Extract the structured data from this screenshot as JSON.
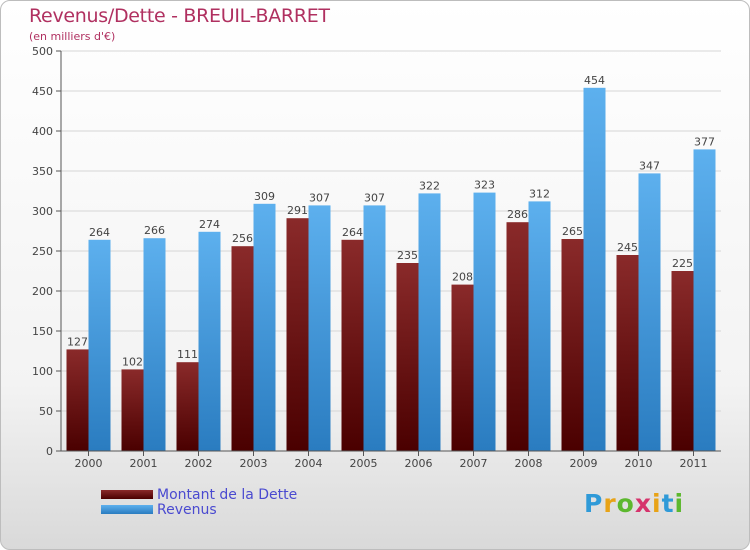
{
  "title": "Revenus/Dette - BREUIL-BARRET",
  "subtitle": "(en milliers d'€)",
  "colors": {
    "dette": "#7a1515",
    "revenus": "#4aa3e8",
    "title": "#b03060",
    "legend_text": "#4a4ad0"
  },
  "chart_data": {
    "type": "bar",
    "title": "Revenus/Dette - BREUIL-BARRET",
    "subtitle": "(en milliers d'€)",
    "categories": [
      "2000",
      "2001",
      "2002",
      "2003",
      "2004",
      "2005",
      "2006",
      "2007",
      "2008",
      "2009",
      "2010",
      "2011"
    ],
    "series": [
      {
        "name": "Montant de la Dette",
        "values": [
          127,
          102,
          111,
          256,
          291,
          264,
          235,
          208,
          286,
          265,
          245,
          225
        ]
      },
      {
        "name": "Revenus",
        "values": [
          264,
          266,
          274,
          309,
          307,
          307,
          322,
          323,
          312,
          454,
          347,
          377
        ]
      }
    ],
    "ylim": [
      0,
      500
    ],
    "yticks": [
      0,
      50,
      100,
      150,
      200,
      250,
      300,
      350,
      400,
      450,
      500
    ],
    "grid": true,
    "legend_position": "bottom-left"
  },
  "legend": [
    {
      "label": "Montant de la Dette",
      "icon": "dark-red-swatch"
    },
    {
      "label": "Revenus",
      "icon": "blue-swatch"
    }
  ],
  "logo": {
    "letters": [
      "P",
      "r",
      "o",
      "x",
      "i",
      "t",
      "i"
    ],
    "colors": [
      "#2f9ad8",
      "#e8a317",
      "#5cb82e",
      "#d6336c",
      "#e8a317",
      "#2f9ad8",
      "#5cb82e"
    ]
  }
}
